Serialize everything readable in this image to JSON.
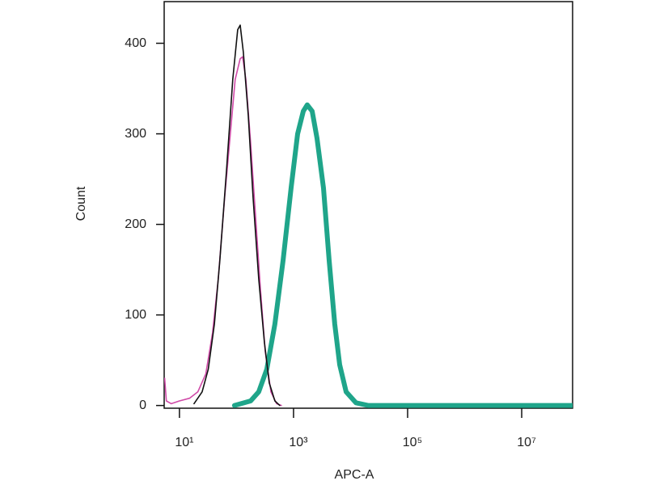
{
  "chart_data": {
    "type": "line",
    "x_label": "APC-A",
    "y_label": "Count",
    "xscale": "log",
    "xlim": [
      5.4,
      78000000
    ],
    "xticks": [
      {
        "value": 10,
        "label": "10¹"
      },
      {
        "value": 1000,
        "label": "10³"
      },
      {
        "value": 100000,
        "label": "10⁵"
      },
      {
        "value": 10000000,
        "label": "10⁷"
      }
    ],
    "ylim": [
      -3,
      446
    ],
    "yticks": [
      0,
      100,
      200,
      300,
      400
    ],
    "series": [
      {
        "color": "#1fa58a",
        "width": 6,
        "x": [
          92,
          177,
          245,
          340,
          472,
          655,
          906,
          1180,
          1480,
          1740,
          2120,
          2580,
          3350,
          4210,
          5280,
          6440,
          8360,
          12400,
          20200,
          449000,
          78000000
        ],
        "values": [
          0,
          5,
          15,
          40,
          90,
          160,
          240,
          300,
          325,
          332,
          325,
          295,
          240,
          160,
          90,
          45,
          15,
          3,
          0,
          0,
          0
        ]
      },
      {
        "color": "#d04aa8",
        "width": 1.6,
        "x": [
          5.5,
          5.9,
          7.2,
          10,
          15,
          21,
          29,
          38,
          48,
          62,
          78,
          95,
          116,
          128,
          146,
          177,
          215,
          262,
          319,
          401,
          504,
          612
        ],
        "values": [
          30,
          5,
          2,
          5,
          8,
          15,
          35,
          80,
          140,
          230,
          300,
          360,
          383,
          385,
          360,
          290,
          210,
          130,
          60,
          15,
          2,
          0
        ]
      },
      {
        "color": "#111111",
        "width": 1.6,
        "x": [
          18,
          25,
          32,
          41,
          51,
          67,
          86,
          105,
          116,
          132,
          161,
          195,
          245,
          308,
          375,
          472,
          574
        ],
        "values": [
          2,
          15,
          40,
          90,
          160,
          260,
          360,
          415,
          420,
          390,
          320,
          230,
          140,
          70,
          25,
          5,
          0
        ]
      }
    ]
  }
}
